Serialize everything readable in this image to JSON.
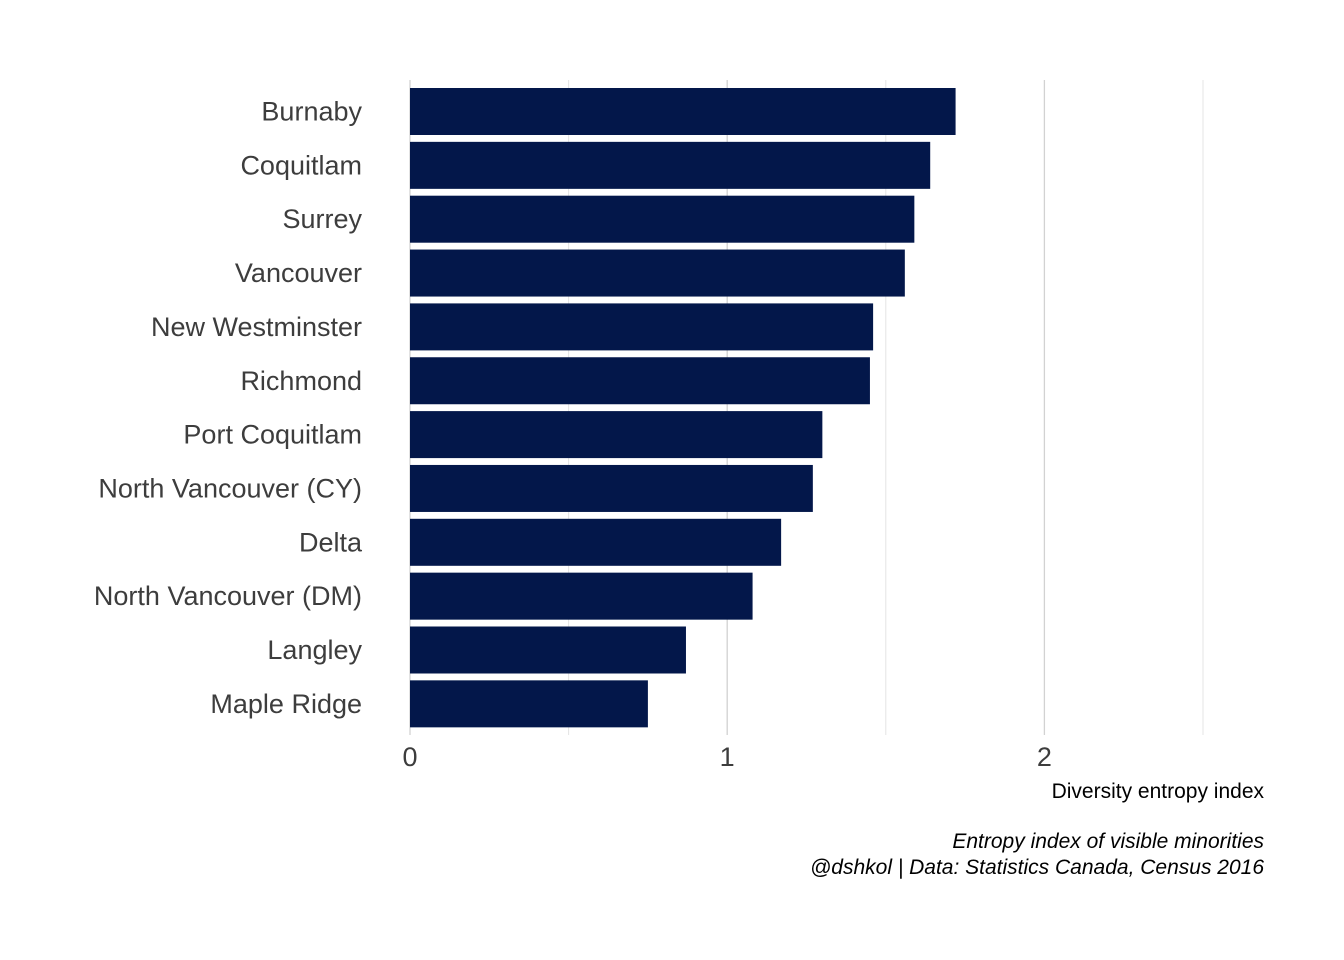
{
  "chart_data": {
    "type": "bar",
    "orientation": "horizontal",
    "categories": [
      "Burnaby",
      "Coquitlam",
      "Surrey",
      "Vancouver",
      "New Westminster",
      "Richmond",
      "Port Coquitlam",
      "North Vancouver (CY)",
      "Delta",
      "North Vancouver (DM)",
      "Langley",
      "Maple Ridge"
    ],
    "values": [
      1.72,
      1.64,
      1.59,
      1.56,
      1.46,
      1.45,
      1.3,
      1.27,
      1.17,
      1.08,
      0.87,
      0.75
    ],
    "xlabel": "Diversity entropy index",
    "ylabel": "",
    "xlim": [
      0,
      2.5
    ],
    "x_ticks": [
      0,
      1,
      2
    ],
    "x_tick_labels": [
      "0",
      "1",
      "2"
    ],
    "x_minor_ticks": [
      0.5,
      1.5,
      2.5
    ],
    "grid": "vertical",
    "legend": "none",
    "bar_color": "#03174a",
    "caption_lines": [
      "Entropy index of visible minorities",
      "@dshkol | Data: Statistics Canada, Census 2016"
    ]
  }
}
